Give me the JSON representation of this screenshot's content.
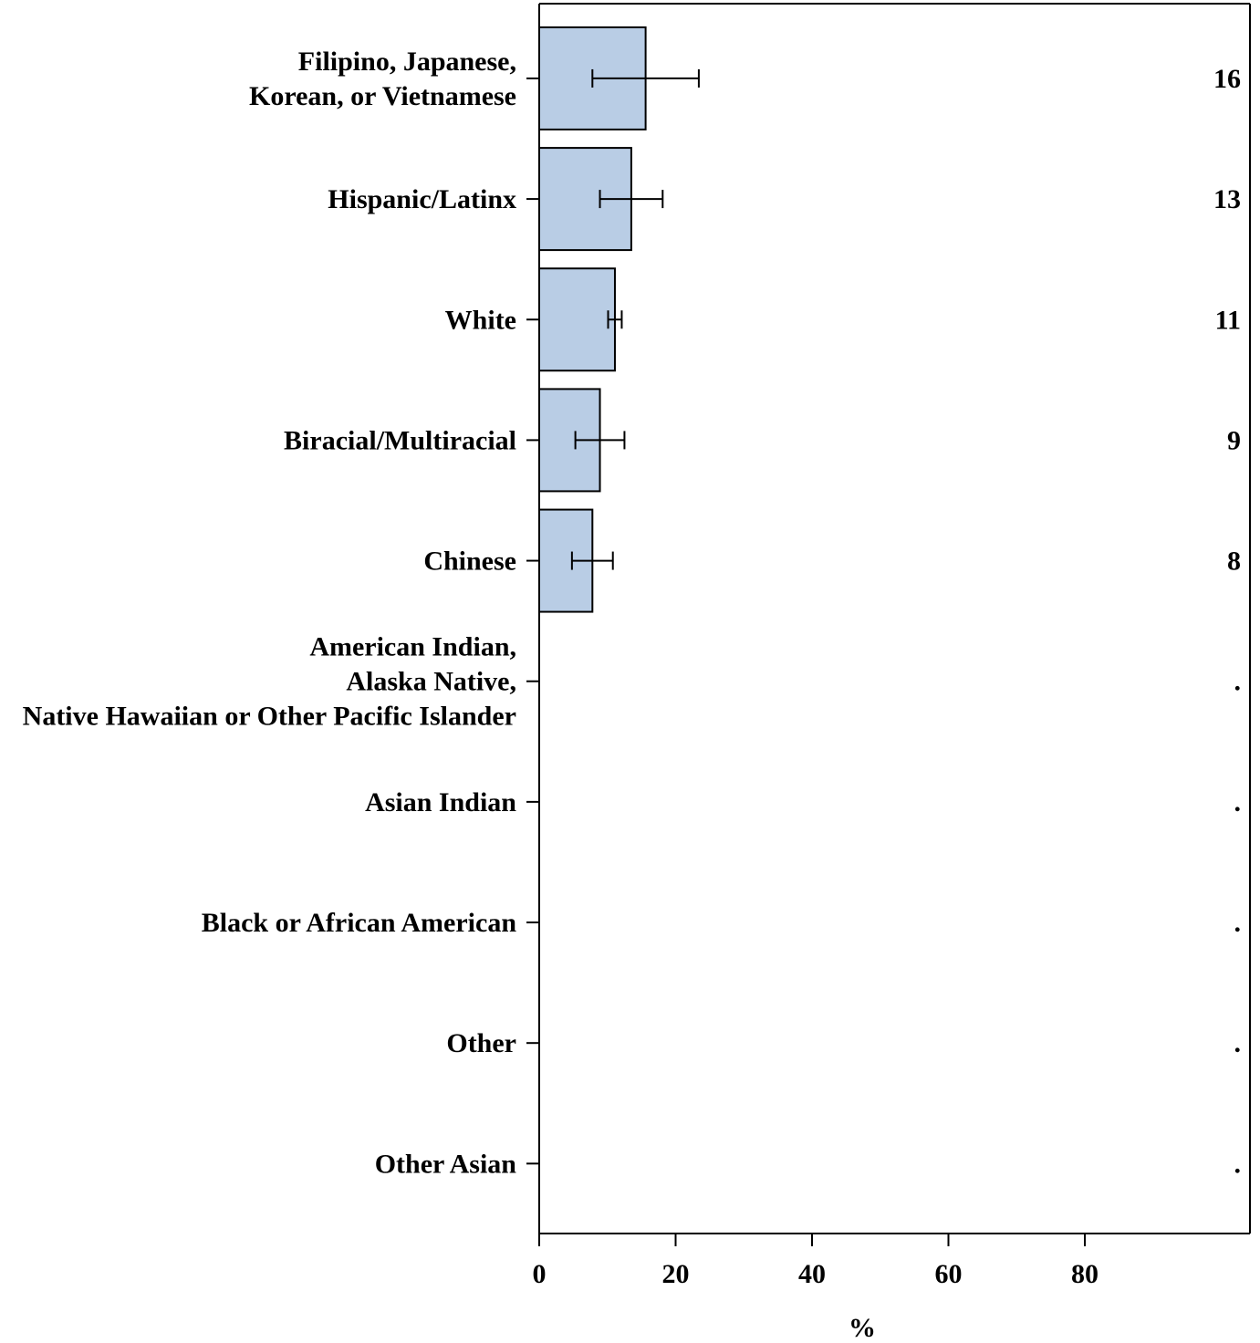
{
  "chart_data": {
    "type": "bar",
    "orientation": "horizontal",
    "xlabel": "%",
    "xlim": [
      0,
      104
    ],
    "xticks": [
      0,
      20,
      40,
      60,
      80
    ],
    "grid": false,
    "bar_color": "#b9cde5",
    "categories": [
      [
        "Filipino, Japanese,",
        "Korean, or Vietnamese"
      ],
      [
        "Hispanic/Latinx"
      ],
      [
        "White"
      ],
      [
        "Biracial/Multiracial"
      ],
      [
        "Chinese"
      ],
      [
        "American Indian,",
        "Alaska Native,",
        "Native Hawaiian or Other Pacific Islander"
      ],
      [
        "Asian Indian"
      ],
      [
        "Black or African American"
      ],
      [
        "Other"
      ],
      [
        "Other Asian"
      ]
    ],
    "values": [
      15.6,
      13.5,
      11.1,
      8.9,
      7.8,
      null,
      null,
      null,
      null,
      null
    ],
    "error_low": [
      7.8,
      8.9,
      10.1,
      5.3,
      4.8,
      null,
      null,
      null,
      null,
      null
    ],
    "error_high": [
      23.4,
      18.1,
      12.1,
      12.5,
      10.8,
      null,
      null,
      null,
      null,
      null
    ],
    "value_labels": [
      "16",
      "13",
      "11",
      "9",
      "8",
      ".",
      ".",
      ".",
      ".",
      "."
    ]
  }
}
